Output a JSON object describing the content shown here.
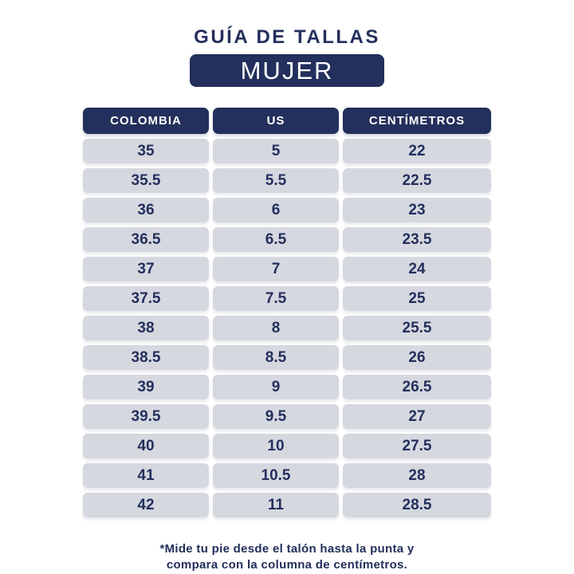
{
  "page": {
    "title": "GUÍA DE TALLAS",
    "badge": "MUJER"
  },
  "colors": {
    "navy": "#232f5c",
    "cell_gray": "#d6d8e0",
    "background": "#ffffff",
    "header_text": "#ffffff"
  },
  "chart_data": {
    "type": "table",
    "title": "GUÍA DE TALLAS - MUJER",
    "columns": [
      "COLOMBIA",
      "US",
      "CENTÍMETROS"
    ],
    "rows": [
      [
        "35",
        "5",
        "22"
      ],
      [
        "35.5",
        "5.5",
        "22.5"
      ],
      [
        "36",
        "6",
        "23"
      ],
      [
        "36.5",
        "6.5",
        "23.5"
      ],
      [
        "37",
        "7",
        "24"
      ],
      [
        "37.5",
        "7.5",
        "25"
      ],
      [
        "38",
        "8",
        "25.5"
      ],
      [
        "38.5",
        "8.5",
        "26"
      ],
      [
        "39",
        "9",
        "26.5"
      ],
      [
        "39.5",
        "9.5",
        "27"
      ],
      [
        "40",
        "10",
        "27.5"
      ],
      [
        "41",
        "10.5",
        "28"
      ],
      [
        "42",
        "11",
        "28.5"
      ]
    ]
  },
  "footnote": {
    "line1": "*Mide tu pie desde el talón hasta la punta y",
    "line2": "compara con la columna de centímetros."
  }
}
